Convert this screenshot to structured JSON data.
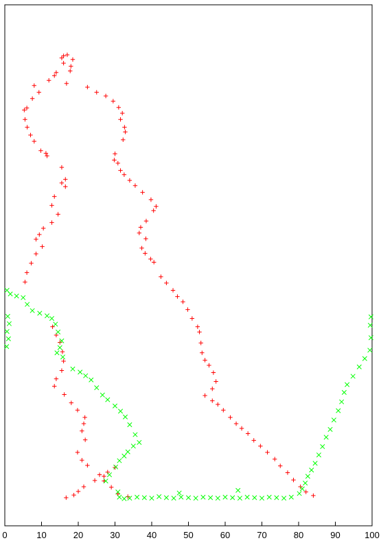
{
  "chart_data": {
    "type": "scatter",
    "title": "",
    "xlabel": "",
    "ylabel": "",
    "xlim": [
      0,
      100
    ],
    "ylim": [
      0,
      100
    ],
    "grid": false,
    "x_ticks": [
      "0",
      "10",
      "20",
      "30",
      "40",
      "50",
      "60",
      "70",
      "80",
      "90",
      "100"
    ],
    "series": [
      {
        "marker": "plus",
        "color": "#ff0000",
        "points": [
          [
            17,
            90.4
          ],
          [
            16,
            90.2
          ],
          [
            15.5,
            89.8
          ],
          [
            18.5,
            89.5
          ],
          [
            16,
            88.8
          ],
          [
            18,
            88.2
          ],
          [
            17.8,
            87.3
          ],
          [
            14,
            87
          ],
          [
            13.5,
            86.4
          ],
          [
            12,
            85.5
          ],
          [
            8,
            84.5
          ],
          [
            9.3,
            83.2
          ],
          [
            7.5,
            82
          ],
          [
            6,
            80.2
          ],
          [
            5.3,
            79.8
          ],
          [
            5.5,
            78
          ],
          [
            6.1,
            76.5
          ],
          [
            7,
            75
          ],
          [
            8,
            73.8
          ],
          [
            9.8,
            72
          ],
          [
            11.2,
            71.5
          ],
          [
            11.5,
            71
          ],
          [
            22.5,
            84.2
          ],
          [
            25,
            83.2
          ],
          [
            27.5,
            82.5
          ],
          [
            29.5,
            81.5
          ],
          [
            31,
            80.3
          ],
          [
            32,
            79.2
          ],
          [
            31.5,
            78
          ],
          [
            32.6,
            76.5
          ],
          [
            32.8,
            75.6
          ],
          [
            32.2,
            74.1
          ],
          [
            30,
            71.4
          ],
          [
            29.8,
            70.2
          ],
          [
            30.8,
            69.6
          ],
          [
            31.5,
            68.2
          ],
          [
            32.5,
            67.4
          ],
          [
            34,
            66.3
          ],
          [
            35.5,
            65.3
          ],
          [
            37.5,
            64
          ],
          [
            39.8,
            62.6
          ],
          [
            41.2,
            61.3
          ],
          [
            40.5,
            60.5
          ],
          [
            38.5,
            58.5
          ],
          [
            37,
            57.3
          ],
          [
            36.6,
            56.2
          ],
          [
            38.4,
            55.1
          ],
          [
            37.3,
            53.3
          ],
          [
            38.2,
            52.3
          ],
          [
            39.7,
            51.2
          ],
          [
            40.6,
            50.6
          ],
          [
            42.5,
            47.8
          ],
          [
            44,
            46.6
          ],
          [
            45.8,
            45.2
          ],
          [
            47,
            44
          ],
          [
            48.5,
            43
          ],
          [
            49.8,
            41.5
          ],
          [
            51,
            39.8
          ],
          [
            52.5,
            38.2
          ],
          [
            53,
            37.2
          ],
          [
            53.4,
            35.1
          ],
          [
            53.7,
            33.2
          ],
          [
            54.5,
            31.8
          ],
          [
            55.6,
            30.8
          ],
          [
            56.8,
            29.4
          ],
          [
            57.5,
            27.7
          ],
          [
            56.5,
            26.3
          ],
          [
            54.5,
            25
          ],
          [
            56.5,
            24
          ],
          [
            58,
            23.3
          ],
          [
            59.5,
            22.2
          ],
          [
            61.4,
            20.8
          ],
          [
            63,
            19.6
          ],
          [
            64.5,
            18.7
          ],
          [
            66.2,
            17.7
          ],
          [
            67.8,
            16.4
          ],
          [
            69.6,
            15.3
          ],
          [
            71.5,
            14.1
          ],
          [
            73.5,
            12.8
          ],
          [
            75,
            11.5
          ],
          [
            77,
            10.2
          ],
          [
            78.6,
            8.8
          ],
          [
            80.5,
            7.5
          ],
          [
            82,
            6.5
          ],
          [
            84,
            5.8
          ],
          [
            16.8,
            84.9
          ],
          [
            15.5,
            68.8
          ],
          [
            16.5,
            66.5
          ],
          [
            15.5,
            65.8
          ],
          [
            16.5,
            65.1
          ],
          [
            13.5,
            63.2
          ],
          [
            12.8,
            61.5
          ],
          [
            14.5,
            59.8
          ],
          [
            12.8,
            58.2
          ],
          [
            10.5,
            57.1
          ],
          [
            9.4,
            55.9
          ],
          [
            8.5,
            55
          ],
          [
            10.2,
            53.6
          ],
          [
            8.5,
            52.2
          ],
          [
            7.2,
            50.4
          ],
          [
            6,
            48.6
          ],
          [
            5.5,
            46.8
          ],
          [
            13,
            38.2
          ],
          [
            14,
            36.6
          ],
          [
            15,
            35.2
          ],
          [
            15.7,
            33.4
          ],
          [
            16,
            31.6
          ],
          [
            15.5,
            29.8
          ],
          [
            14,
            28.2
          ],
          [
            13.5,
            26.8
          ],
          [
            16.2,
            25.2
          ],
          [
            18.1,
            23.6
          ],
          [
            19.8,
            22.2
          ],
          [
            21.8,
            20.8
          ],
          [
            21.5,
            19.6
          ],
          [
            21,
            18.2
          ],
          [
            21.9,
            16.5
          ],
          [
            19.8,
            14.1
          ],
          [
            21,
            12.6
          ],
          [
            22.5,
            11.6
          ],
          [
            25.8,
            9.8
          ],
          [
            27,
            8.6
          ],
          [
            29,
            7.4
          ],
          [
            30.8,
            6.1
          ],
          [
            33.5,
            5.6
          ],
          [
            16.7,
            5.4
          ],
          [
            18.8,
            5.9
          ],
          [
            20,
            6.6
          ],
          [
            21.5,
            7.5
          ],
          [
            24.5,
            8.7
          ],
          [
            27,
            9.5
          ],
          [
            28,
            10.3
          ],
          [
            30,
            11.2
          ]
        ]
      },
      {
        "marker": "cross",
        "color": "#00ff00",
        "points": [
          [
            0.6,
            45.2
          ],
          [
            1.5,
            44.5
          ],
          [
            3.2,
            44.1
          ],
          [
            5,
            43.8
          ],
          [
            6.1,
            42.5
          ],
          [
            7.5,
            41.3
          ],
          [
            9.5,
            40.8
          ],
          [
            11.5,
            40.3
          ],
          [
            12.8,
            39.8
          ],
          [
            13.8,
            38.7
          ],
          [
            14.5,
            37.2
          ],
          [
            15.5,
            35.5
          ],
          [
            15,
            34.2
          ],
          [
            14.2,
            33.2
          ],
          [
            15.8,
            32.4
          ],
          [
            18.5,
            30.1
          ],
          [
            20.5,
            29.5
          ],
          [
            22,
            28.8
          ],
          [
            23.5,
            28
          ],
          [
            25,
            26.5
          ],
          [
            26.6,
            25.1
          ],
          [
            28,
            24.2
          ],
          [
            30,
            23
          ],
          [
            31.5,
            22
          ],
          [
            32.8,
            20.9
          ],
          [
            34,
            19.4
          ],
          [
            35.5,
            17.5
          ],
          [
            36.6,
            16
          ],
          [
            35,
            15.3
          ],
          [
            33.5,
            14.2
          ],
          [
            32.5,
            13.4
          ],
          [
            31.2,
            12.5
          ],
          [
            30.2,
            11.3
          ],
          [
            28.5,
            9.8
          ],
          [
            27.5,
            8.6
          ],
          [
            30.8,
            6.5
          ],
          [
            31.2,
            5.5
          ],
          [
            32.5,
            5.2
          ],
          [
            34,
            5.3
          ],
          [
            36,
            5.5
          ],
          [
            38,
            5.4
          ],
          [
            40,
            5.3
          ],
          [
            42,
            5.6
          ],
          [
            44,
            5.4
          ],
          [
            46,
            5.3
          ],
          [
            48,
            5.5
          ],
          [
            50,
            5.4
          ],
          [
            52,
            5.3
          ],
          [
            54,
            5.5
          ],
          [
            56,
            5.4
          ],
          [
            58,
            5.3
          ],
          [
            60,
            5.5
          ],
          [
            62,
            5.4
          ],
          [
            64,
            5.3
          ],
          [
            66,
            5.5
          ],
          [
            68,
            5.4
          ],
          [
            70,
            5.3
          ],
          [
            72,
            5.5
          ],
          [
            74,
            5.4
          ],
          [
            76,
            5.3
          ],
          [
            78,
            5.5
          ],
          [
            80.2,
            6.2
          ],
          [
            81,
            7.1
          ],
          [
            81.8,
            8.2
          ],
          [
            82.5,
            9.5
          ],
          [
            83.5,
            10.7
          ],
          [
            84.5,
            12
          ],
          [
            85.5,
            13.6
          ],
          [
            86.5,
            15.2
          ],
          [
            87.5,
            17
          ],
          [
            88.6,
            18.5
          ],
          [
            89.6,
            20.3
          ],
          [
            90.8,
            22.1
          ],
          [
            91.7,
            23.8
          ],
          [
            92.4,
            25.6
          ],
          [
            93.2,
            27.1
          ],
          [
            94.8,
            28.7
          ],
          [
            96.5,
            30.5
          ],
          [
            98,
            32.1
          ],
          [
            99.4,
            33.7
          ],
          [
            99.7,
            36.1
          ],
          [
            99.5,
            38.5
          ],
          [
            99.7,
            40.1
          ],
          [
            0.5,
            34.4
          ],
          [
            1,
            35.9
          ],
          [
            0.6,
            37.3
          ],
          [
            1.2,
            38.8
          ],
          [
            0.8,
            40.2
          ],
          [
            47.5,
            6.3
          ],
          [
            63.5,
            6.8
          ]
        ]
      }
    ]
  }
}
